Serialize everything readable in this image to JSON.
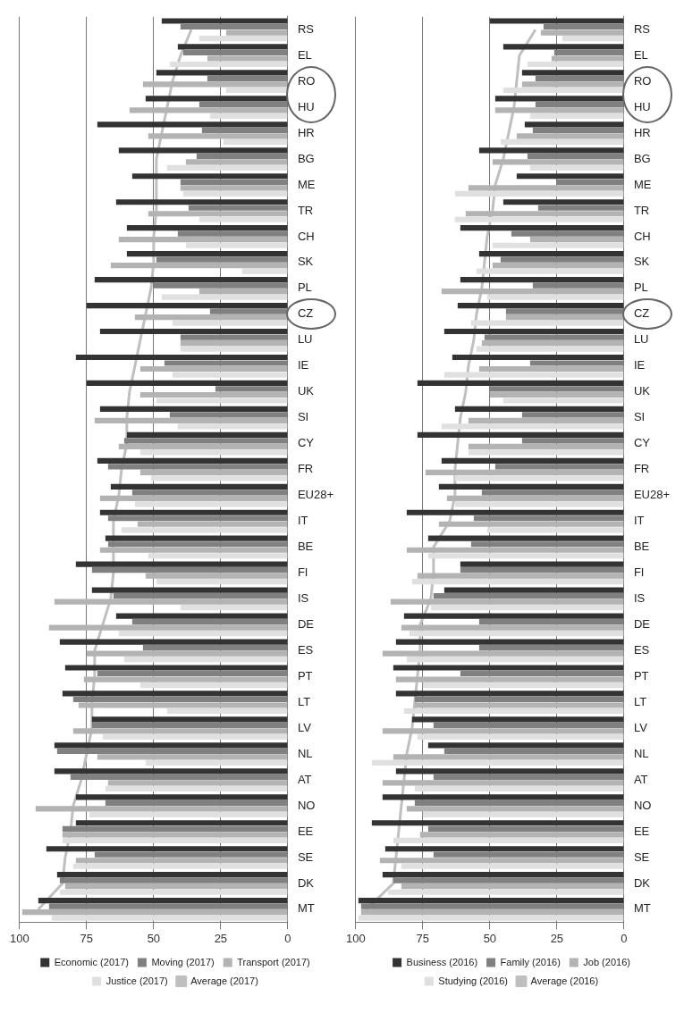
{
  "chart_data": [
    {
      "type": "bar",
      "orientation": "horizontal",
      "categories": [
        "RS",
        "EL",
        "RO",
        "HU",
        "HR",
        "BG",
        "ME",
        "TR",
        "CH",
        "SK",
        "PL",
        "CZ",
        "LU",
        "IE",
        "UK",
        "SI",
        "CY",
        "FR",
        "EU28+",
        "IT",
        "BE",
        "FI",
        "IS",
        "DE",
        "ES",
        "PT",
        "LT",
        "LV",
        "NL",
        "AT",
        "NO",
        "EE",
        "SE",
        "DK",
        "MT"
      ],
      "series": [
        {
          "name": "Economic (2017)",
          "color": "#333333",
          "values": [
            47,
            41,
            49,
            53,
            71,
            63,
            58,
            64,
            60,
            60,
            72,
            75,
            70,
            79,
            75,
            70,
            60,
            71,
            66,
            70,
            68,
            79,
            73,
            64,
            85,
            83,
            84,
            73,
            87,
            87,
            79,
            79,
            90,
            86,
            93
          ]
        },
        {
          "name": "Moving (2017)",
          "color": "#808080",
          "values": [
            40,
            39,
            30,
            33,
            32,
            34,
            40,
            37,
            41,
            49,
            50,
            29,
            40,
            46,
            27,
            44,
            61,
            67,
            58,
            67,
            67,
            73,
            65,
            58,
            54,
            71,
            80,
            73,
            86,
            81,
            68,
            84,
            72,
            85,
            89
          ]
        },
        {
          "name": "Transport (2017)",
          "color": "#b3b3b3",
          "values": [
            23,
            30,
            54,
            59,
            52,
            38,
            40,
            52,
            63,
            66,
            33,
            57,
            40,
            55,
            55,
            72,
            63,
            55,
            70,
            56,
            70,
            53,
            87,
            89,
            75,
            76,
            78,
            80,
            71,
            67,
            94,
            84,
            79,
            83,
            99
          ]
        },
        {
          "name": "Justice (2017)",
          "color": "#e0e0e0",
          "values": [
            33,
            44,
            23,
            29,
            24,
            45,
            39,
            33,
            38,
            17,
            47,
            43,
            40,
            43,
            49,
            41,
            55,
            51,
            57,
            62,
            52,
            49,
            40,
            63,
            61,
            55,
            45,
            69,
            53,
            68,
            74,
            84,
            80,
            85,
            88
          ]
        },
        {
          "name": "Average (2017)",
          "type": "line",
          "color": "#bfbfbf",
          "values": [
            36,
            40,
            43,
            45,
            47,
            49,
            49,
            49,
            50,
            50,
            51,
            53,
            55,
            57,
            59,
            60,
            60,
            62,
            63,
            65,
            65,
            65,
            66,
            69,
            72,
            72,
            73,
            73,
            75,
            77,
            80,
            81,
            83,
            84,
            93
          ]
        }
      ],
      "xlim": [
        100,
        0
      ],
      "xticks": [
        100,
        75,
        50,
        25,
        0
      ],
      "grid": "x",
      "legend": "bottom",
      "marker": "none"
    },
    {
      "type": "bar",
      "orientation": "horizontal",
      "categories": [
        "RS",
        "EL",
        "RO",
        "HU",
        "HR",
        "BG",
        "ME",
        "TR",
        "CH",
        "SK",
        "PL",
        "CZ",
        "LU",
        "IE",
        "UK",
        "SI",
        "CY",
        "FR",
        "EU28+",
        "IT",
        "BE",
        "FI",
        "IS",
        "DE",
        "ES",
        "PT",
        "LT",
        "LV",
        "NL",
        "AT",
        "NO",
        "EE",
        "SE",
        "DK",
        "MT"
      ],
      "series": [
        {
          "name": "Business (2016)",
          "color": "#333333",
          "values": [
            50,
            45,
            38,
            48,
            37,
            54,
            40,
            45,
            61,
            54,
            61,
            62,
            67,
            64,
            77,
            63,
            77,
            68,
            69,
            81,
            73,
            61,
            67,
            82,
            85,
            86,
            85,
            79,
            73,
            85,
            90,
            94,
            89,
            90,
            99
          ]
        },
        {
          "name": "Family (2016)",
          "color": "#808080",
          "values": [
            30,
            26,
            33,
            33,
            34,
            36,
            25,
            32,
            42,
            46,
            34,
            44,
            52,
            35,
            50,
            38,
            38,
            48,
            53,
            56,
            57,
            61,
            71,
            54,
            54,
            61,
            78,
            71,
            67,
            71,
            78,
            73,
            71,
            86,
            98
          ]
        },
        {
          "name": "Job (2016)",
          "color": "#b3b3b3",
          "values": [
            31,
            27,
            38,
            48,
            40,
            49,
            58,
            59,
            35,
            49,
            68,
            44,
            53,
            54,
            50,
            58,
            58,
            74,
            66,
            69,
            81,
            77,
            87,
            83,
            90,
            85,
            78,
            90,
            86,
            90,
            81,
            76,
            91,
            83,
            98
          ]
        },
        {
          "name": "Studying (2016)",
          "color": "#e0e0e0",
          "values": [
            23,
            36,
            45,
            35,
            46,
            35,
            63,
            63,
            49,
            55,
            51,
            57,
            55,
            67,
            45,
            68,
            58,
            63,
            63,
            51,
            73,
            79,
            72,
            80,
            81,
            75,
            82,
            77,
            94,
            78,
            75,
            86,
            83,
            88,
            99
          ]
        },
        {
          "name": "Average (2016)",
          "type": "line",
          "color": "#bfbfbf",
          "values": [
            33,
            39,
            40,
            41,
            43,
            45,
            48,
            49,
            51,
            52,
            53,
            55,
            56,
            58,
            59,
            61,
            62,
            63,
            63,
            65,
            71,
            71,
            72,
            76,
            76,
            77,
            78,
            79,
            81,
            82,
            83,
            84,
            85,
            86,
            96
          ]
        }
      ],
      "xlim": [
        100,
        0
      ],
      "xticks": [
        100,
        75,
        50,
        25,
        0
      ],
      "grid": "x",
      "legend": "bottom",
      "marker": "none"
    }
  ]
}
